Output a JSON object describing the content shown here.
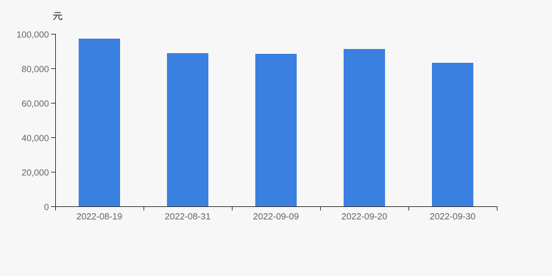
{
  "chart_data": {
    "type": "bar",
    "title": "",
    "unit_label": "元",
    "categories": [
      "2022-08-19",
      "2022-08-31",
      "2022-09-09",
      "2022-09-20",
      "2022-09-30"
    ],
    "values": [
      97200,
      88700,
      88300,
      91100,
      83300
    ],
    "xlabel": "",
    "ylabel": "元",
    "ylim": [
      0,
      100000
    ],
    "y_tick_interval": 20000,
    "y_tick_labels": [
      "0",
      "20,000",
      "40,000",
      "60,000",
      "80,000",
      "100,000"
    ],
    "grid": "off",
    "legend": "none",
    "colors": {
      "bar": "#3A80E1",
      "axis": "#333333",
      "tick_label": "#666666",
      "unit_label": "#4A4A4A",
      "background": "#F7F7F7"
    }
  }
}
